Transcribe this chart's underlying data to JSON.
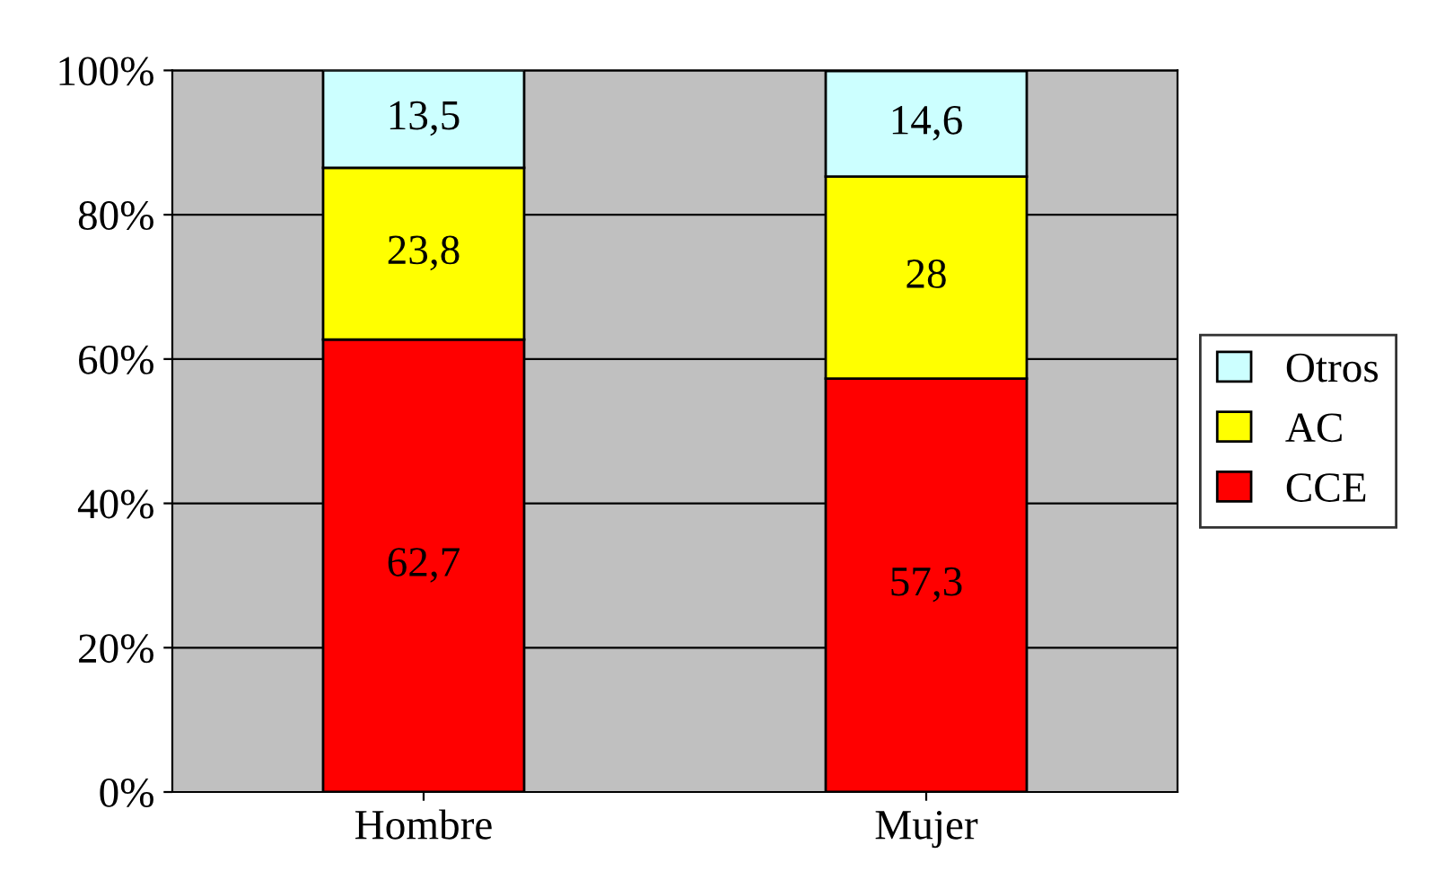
{
  "chart_data": {
    "type": "bar",
    "stacked": true,
    "categories": [
      "Hombre",
      "Mujer"
    ],
    "series": [
      {
        "name": "CCE",
        "color": "#ff0000",
        "values": [
          62.7,
          57.3
        ],
        "value_labels": [
          "62,7",
          "57,3"
        ]
      },
      {
        "name": "AC",
        "color": "#ffff00",
        "values": [
          23.8,
          28
        ],
        "value_labels": [
          "23,8",
          "28"
        ]
      },
      {
        "name": "Otros",
        "color": "#ccffff",
        "values": [
          13.5,
          14.6
        ],
        "value_labels": [
          "13,5",
          "14,6"
        ]
      }
    ],
    "ylim": [
      0,
      100
    ],
    "yticks": [
      {
        "value": 0,
        "label": "0%"
      },
      {
        "value": 20,
        "label": "20%"
      },
      {
        "value": 40,
        "label": "40%"
      },
      {
        "value": 60,
        "label": "60%"
      },
      {
        "value": 80,
        "label": "80%"
      },
      {
        "value": 100,
        "label": "100%"
      }
    ],
    "grid": "y",
    "legend": "right"
  }
}
